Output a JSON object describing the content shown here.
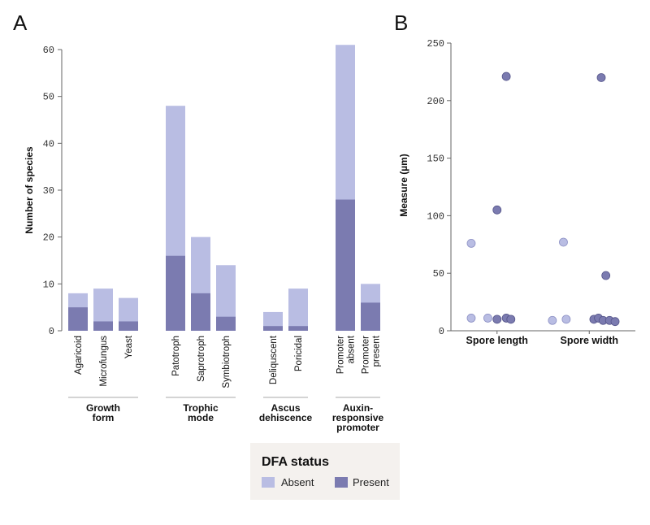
{
  "panels": {
    "a_letter": "A",
    "b_letter": "B"
  },
  "colors": {
    "absent": "#b9bde3",
    "present": "#7b7bb0",
    "absent_stroke": "#8c90c4",
    "present_stroke": "#55558a",
    "legend_bg": "#f4f1ee",
    "axis": "#666666",
    "group_line": "#aaaaaa"
  },
  "legend": {
    "title": "DFA status",
    "absent": "Absent",
    "present": "Present"
  },
  "chart_data": [
    {
      "type": "bar",
      "stacked": true,
      "ylabel": "Number of species",
      "ylim": [
        0,
        60
      ],
      "yticks": [
        0,
        10,
        20,
        30,
        40,
        50,
        60
      ],
      "groups": [
        {
          "label": [
            "Growth",
            "form"
          ],
          "categories": [
            {
              "label": [
                "Agaricoid"
              ],
              "present": 5,
              "total": 8
            },
            {
              "label": [
                "Microfungus"
              ],
              "present": 2,
              "total": 9
            },
            {
              "label": [
                "Yeast"
              ],
              "present": 2,
              "total": 7
            }
          ]
        },
        {
          "label": [
            "Trophic",
            "mode"
          ],
          "categories": [
            {
              "label": [
                "Patotroph"
              ],
              "present": 16,
              "total": 48
            },
            {
              "label": [
                "Saprotroph"
              ],
              "present": 8,
              "total": 20
            },
            {
              "label": [
                "Symbiotroph"
              ],
              "present": 3,
              "total": 14
            }
          ]
        },
        {
          "label": [
            "Ascus",
            "dehiscence"
          ],
          "categories": [
            {
              "label": [
                "Deliquscent"
              ],
              "present": 1,
              "total": 4
            },
            {
              "label": [
                "Poricidal"
              ],
              "present": 1,
              "total": 9
            }
          ]
        },
        {
          "label": [
            "Auxin-",
            "responsive",
            "promoter"
          ],
          "categories": [
            {
              "label": [
                "Promoter",
                "absent"
              ],
              "present": 28,
              "total": 61
            },
            {
              "label": [
                "Promoter",
                "present"
              ],
              "present": 6,
              "total": 10
            }
          ]
        }
      ]
    },
    {
      "type": "scatter",
      "ylabel": "Measure (µm)",
      "ylim": [
        0,
        250
      ],
      "yticks": [
        0,
        50,
        100,
        150,
        200,
        250
      ],
      "categories": [
        "Spore length",
        "Spore width"
      ],
      "series": [
        {
          "status": "absent",
          "points": [
            {
              "category": "Spore length",
              "jitter": -0.28,
              "y": 76
            },
            {
              "category": "Spore length",
              "jitter": -0.28,
              "y": 11
            },
            {
              "category": "Spore length",
              "jitter": -0.1,
              "y": 11
            },
            {
              "category": "Spore width",
              "jitter": -0.28,
              "y": 77
            },
            {
              "category": "Spore width",
              "jitter": -0.4,
              "y": 9
            },
            {
              "category": "Spore width",
              "jitter": -0.25,
              "y": 10
            }
          ]
        },
        {
          "status": "present",
          "points": [
            {
              "category": "Spore length",
              "jitter": 0.1,
              "y": 221
            },
            {
              "category": "Spore length",
              "jitter": 0.0,
              "y": 105
            },
            {
              "category": "Spore length",
              "jitter": 0.0,
              "y": 10
            },
            {
              "category": "Spore length",
              "jitter": 0.1,
              "y": 11
            },
            {
              "category": "Spore length",
              "jitter": 0.15,
              "y": 10
            },
            {
              "category": "Spore width",
              "jitter": 0.13,
              "y": 220
            },
            {
              "category": "Spore width",
              "jitter": 0.18,
              "y": 48
            },
            {
              "category": "Spore width",
              "jitter": 0.05,
              "y": 10
            },
            {
              "category": "Spore width",
              "jitter": 0.1,
              "y": 11
            },
            {
              "category": "Spore width",
              "jitter": 0.15,
              "y": 9
            },
            {
              "category": "Spore width",
              "jitter": 0.22,
              "y": 9
            },
            {
              "category": "Spore width",
              "jitter": 0.28,
              "y": 8
            }
          ]
        }
      ]
    }
  ]
}
